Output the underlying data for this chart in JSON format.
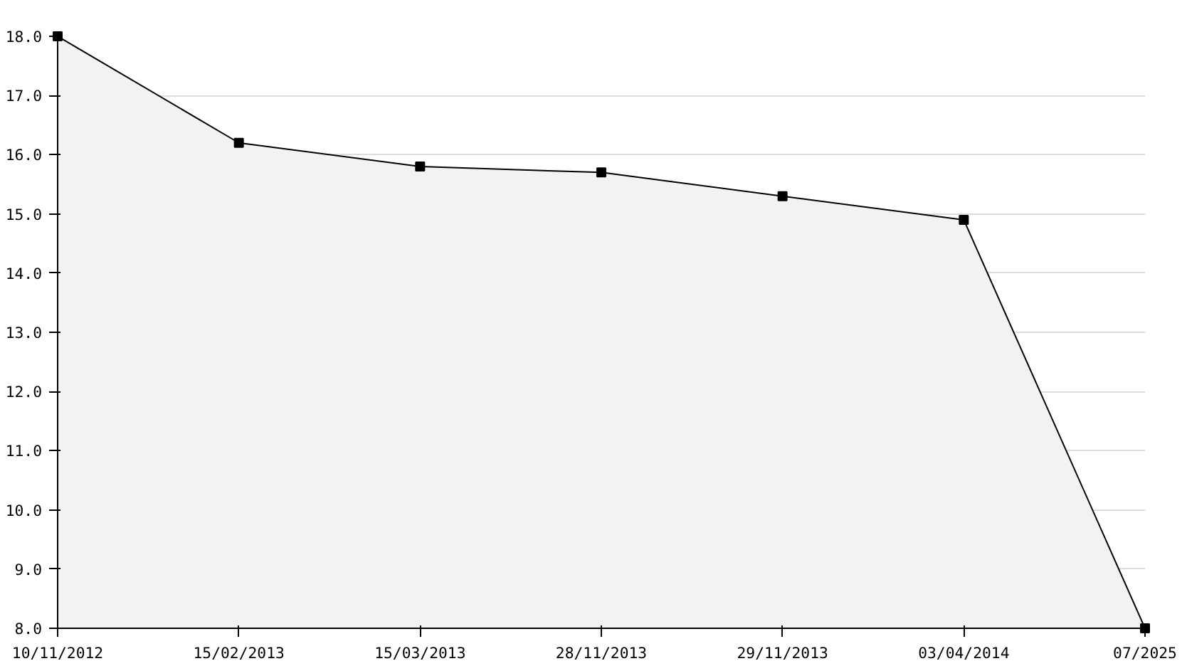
{
  "chart_data": {
    "type": "area",
    "categories": [
      "10/11/2012",
      "15/02/2013",
      "15/03/2013",
      "28/11/2013",
      "29/11/2013",
      "03/04/2014",
      "07/2025"
    ],
    "series": [
      {
        "color": "#000000",
        "values": [
          18.0,
          16.2,
          15.8,
          15.7,
          15.3,
          14.9,
          8.0
        ]
      }
    ],
    "ylim": [
      8,
      18
    ],
    "yticks": [
      {
        "value": 8,
        "label": "8.0"
      },
      {
        "value": 9,
        "label": "9.0"
      },
      {
        "value": 10,
        "label": "10.0"
      },
      {
        "value": 11,
        "label": "11.0"
      },
      {
        "value": 12,
        "label": "12.0"
      },
      {
        "value": 13,
        "label": "13.0"
      },
      {
        "value": 14,
        "label": "14.0"
      },
      {
        "value": 15,
        "label": "15.0"
      },
      {
        "value": 16,
        "label": "16.0"
      },
      {
        "value": 17,
        "label": "17.0"
      },
      {
        "value": 18,
        "label": "18.0"
      }
    ],
    "grid": "y",
    "marker": "square",
    "line_style": "solid"
  }
}
